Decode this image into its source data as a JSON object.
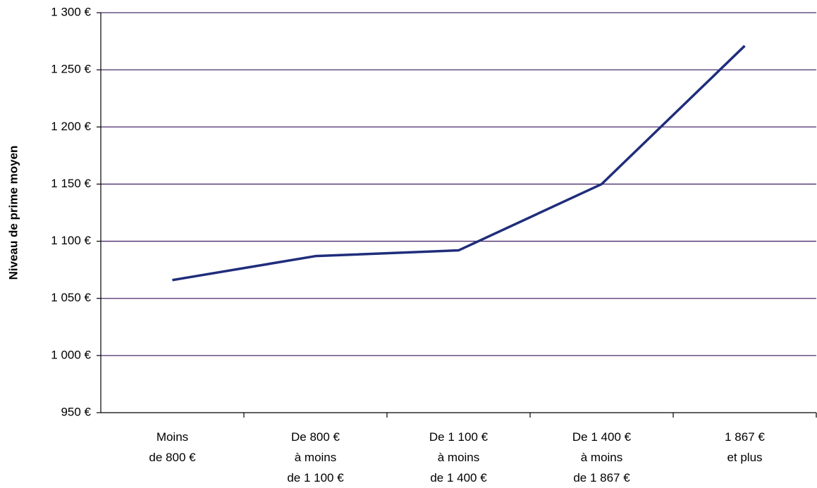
{
  "chart_data": {
    "type": "line",
    "y_label": "Niveau de prime moyen",
    "categories": [
      "Moins\nde 800 €",
      "De 800 €\nà moins\nde 1 100 €",
      "De 1 100 €\nà moins\nde 1 400 €",
      "De 1 400 €\nà moins\nde 1 867 €",
      "1 867 €\net plus"
    ],
    "series": [
      {
        "name": "Niveau de prime moyen",
        "color": "#1f2d7b",
        "values": [
          1066,
          1087,
          1092,
          1150,
          1271
        ]
      }
    ],
    "ylim": [
      950,
      1300
    ],
    "yticks": [
      {
        "value": 950,
        "label": "950 €"
      },
      {
        "value": 1000,
        "label": "1 000 €"
      },
      {
        "value": 1050,
        "label": "1 050 €"
      },
      {
        "value": 1100,
        "label": "1 100 €"
      },
      {
        "value": 1150,
        "label": "1 150 €"
      },
      {
        "value": 1200,
        "label": "1 200 €"
      },
      {
        "value": 1250,
        "label": "1 250 €"
      },
      {
        "value": 1300,
        "label": "1 300 €"
      }
    ],
    "grid": true
  }
}
